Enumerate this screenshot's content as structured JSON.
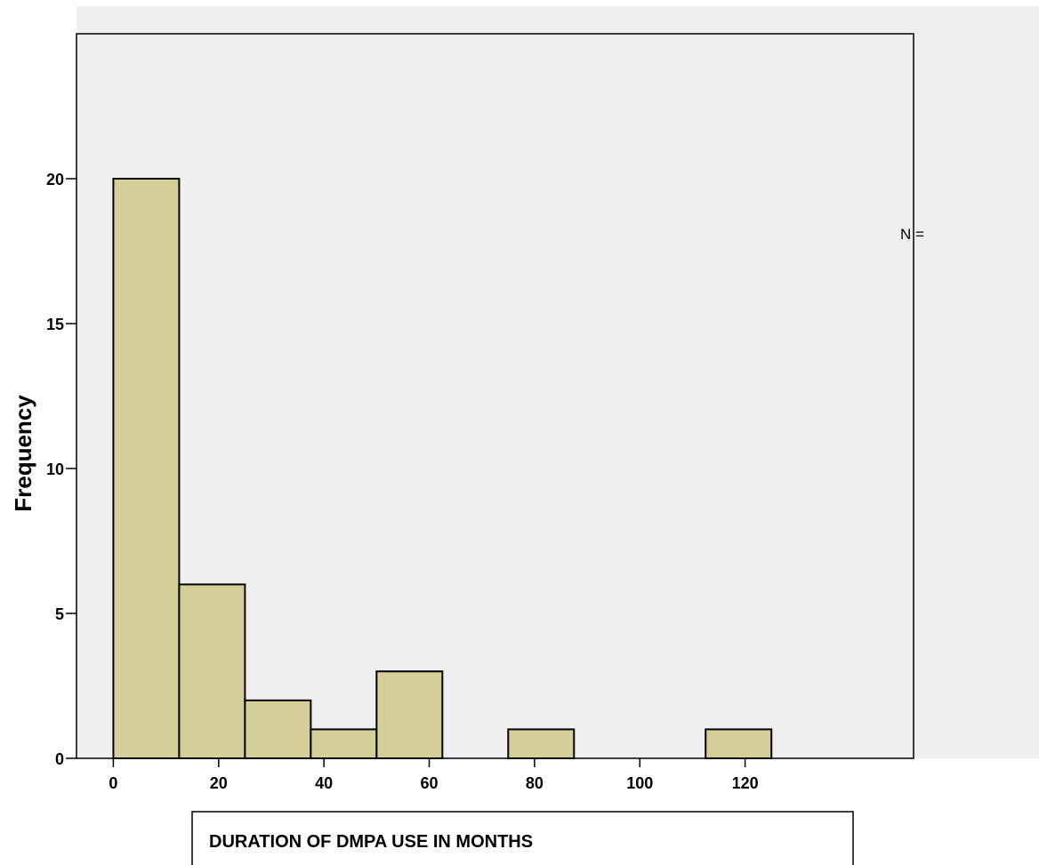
{
  "chart_data": {
    "type": "bar",
    "subtype": "histogram",
    "bin_width": 12.5,
    "bins": [
      {
        "x0": 0,
        "x1": 12.5,
        "count": 20
      },
      {
        "x0": 12.5,
        "x1": 25,
        "count": 6
      },
      {
        "x0": 25,
        "x1": 37.5,
        "count": 2
      },
      {
        "x0": 37.5,
        "x1": 50,
        "count": 1
      },
      {
        "x0": 50,
        "x1": 62.5,
        "count": 3
      },
      {
        "x0": 62.5,
        "x1": 75,
        "count": 0
      },
      {
        "x0": 75,
        "x1": 87.5,
        "count": 1
      },
      {
        "x0": 87.5,
        "x1": 100,
        "count": 0
      },
      {
        "x0": 100,
        "x1": 112.5,
        "count": 0
      },
      {
        "x0": 112.5,
        "x1": 125,
        "count": 1
      }
    ],
    "xlabel": "DURATION OF DMPA USE IN MONTHS",
    "ylabel": "Frequency",
    "xlim": [
      -7,
      152
    ],
    "ylim": [
      0,
      25
    ],
    "x_ticks": [
      0,
      20,
      40,
      60,
      80,
      100,
      120
    ],
    "y_ticks": [
      0,
      5,
      10,
      15,
      20
    ],
    "grid": false,
    "legend_text": "N =",
    "legend_position": "right",
    "colors": {
      "bar_fill": "#d4cf99",
      "bar_stroke": "#000000",
      "plot_background": "#f0f0f0",
      "page_background": "#ffffff"
    }
  }
}
